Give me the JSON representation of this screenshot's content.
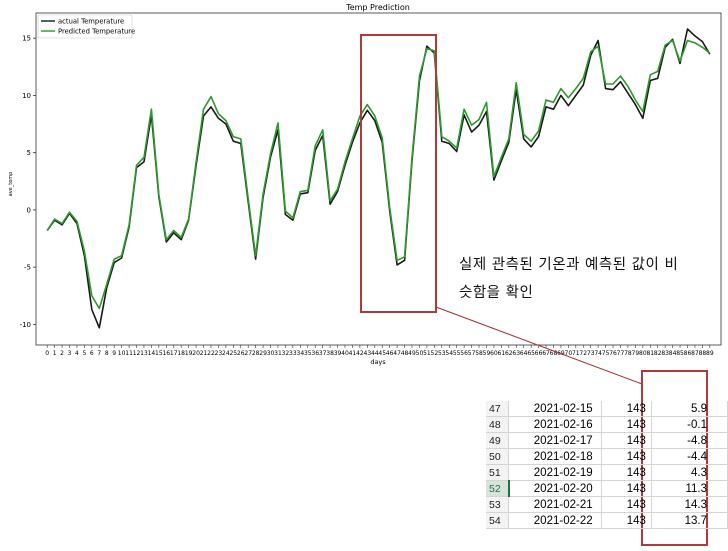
{
  "chart_data": {
    "type": "line",
    "title": "Temp Prediction",
    "xlabel": "days",
    "ylabel": "ave_temp",
    "xlim": [
      -1.5,
      90.5
    ],
    "ylim": [
      -11.8,
      17.2
    ],
    "yticks": [
      -10,
      -5,
      0,
      5,
      10,
      15
    ],
    "legend_position": "top-left",
    "series": [
      {
        "name": "actual Temperature",
        "color": "#1a1a1a",
        "values": [
          -1.8,
          -0.9,
          -1.3,
          -0.3,
          -1.2,
          -4.0,
          -8.7,
          -10.3,
          -6.8,
          -4.6,
          -4.2,
          -1.5,
          3.7,
          4.2,
          8.3,
          1.1,
          -2.8,
          -2.0,
          -2.6,
          -0.9,
          3.9,
          8.2,
          9.0,
          8.0,
          7.5,
          6.0,
          5.8,
          0.7,
          -4.3,
          1.1,
          4.6,
          7.0,
          -0.4,
          -0.9,
          1.4,
          1.5,
          5.2,
          6.5,
          0.5,
          1.6,
          3.9,
          5.9,
          7.6,
          8.7,
          7.8,
          5.9,
          -0.1,
          -4.8,
          -4.4,
          4.3,
          11.3,
          14.3,
          13.7,
          6.0,
          5.8,
          5.1,
          8.3,
          6.8,
          7.4,
          8.6,
          2.6,
          4.3,
          5.9,
          10.5,
          6.2,
          5.5,
          6.4,
          9.0,
          8.8,
          10.0,
          9.1,
          10.0,
          10.9,
          13.5,
          14.8,
          10.6,
          10.5,
          11.2,
          10.2,
          9.2,
          8.0,
          11.3,
          11.5,
          14.2,
          14.9,
          12.8,
          15.8,
          15.2,
          14.7,
          13.6
        ]
      },
      {
        "name": "Predicted Temperature",
        "color": "#2c9a2c",
        "values": [
          -1.8,
          -0.8,
          -1.2,
          -0.2,
          -1.0,
          -3.6,
          -7.5,
          -8.6,
          -6.5,
          -4.3,
          -4.0,
          -1.3,
          3.9,
          4.6,
          8.8,
          1.3,
          -2.6,
          -1.8,
          -2.4,
          -0.8,
          4.2,
          8.8,
          9.9,
          8.4,
          7.8,
          6.4,
          6.2,
          1.0,
          -4.0,
          1.4,
          4.9,
          7.6,
          -0.1,
          -0.7,
          1.6,
          1.7,
          5.6,
          7.0,
          0.8,
          1.8,
          4.2,
          6.2,
          8.2,
          9.2,
          8.2,
          6.3,
          0.2,
          -4.4,
          -4.1,
          4.6,
          11.7,
          14.1,
          13.9,
          6.4,
          6.0,
          5.4,
          8.8,
          7.4,
          7.9,
          9.4,
          2.9,
          4.6,
          6.2,
          11.1,
          6.6,
          6.0,
          6.9,
          9.6,
          9.4,
          10.6,
          9.8,
          10.6,
          11.5,
          13.8,
          14.3,
          11.0,
          11.0,
          11.7,
          10.8,
          9.6,
          8.6,
          11.8,
          12.1,
          14.4,
          14.8,
          13.0,
          14.8,
          14.6,
          14.2,
          13.7
        ]
      }
    ]
  },
  "annotation": {
    "line1": "실제 관측된 기온과 예측된 값이 비",
    "line2": "슷함을 확인"
  },
  "table": {
    "rows": [
      {
        "row": "47",
        "date": "2021-02-15",
        "n": "143",
        "value": "5.9"
      },
      {
        "row": "48",
        "date": "2021-02-16",
        "n": "143",
        "value": "-0.1"
      },
      {
        "row": "49",
        "date": "2021-02-17",
        "n": "143",
        "value": "-4.8"
      },
      {
        "row": "50",
        "date": "2021-02-18",
        "n": "143",
        "value": "-4.4"
      },
      {
        "row": "51",
        "date": "2021-02-19",
        "n": "143",
        "value": "4.3"
      },
      {
        "row": "52",
        "date": "2021-02-20",
        "n": "143",
        "value": "11.3",
        "selected": true
      },
      {
        "row": "53",
        "date": "2021-02-21",
        "n": "143",
        "value": "14.3"
      },
      {
        "row": "54",
        "date": "2021-02-22",
        "n": "143",
        "value": "13.7"
      }
    ]
  },
  "colors": {
    "highlight_box": "#b03a3a",
    "connector": "#a33030"
  }
}
